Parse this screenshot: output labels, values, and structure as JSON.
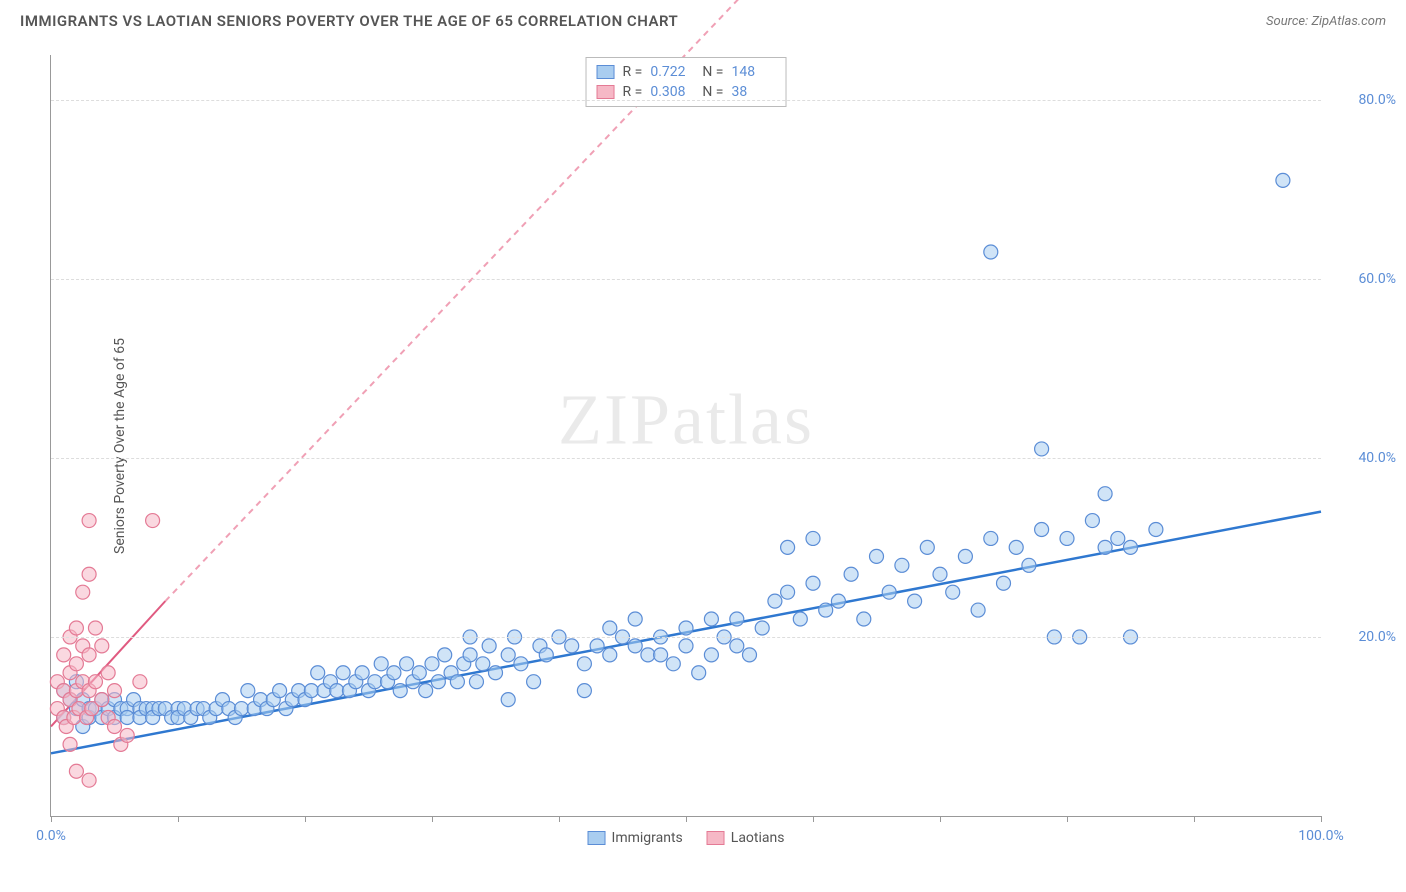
{
  "header": {
    "title": "IMMIGRANTS VS LAOTIAN SENIORS POVERTY OVER THE AGE OF 65 CORRELATION CHART",
    "source_prefix": "Source: ",
    "source": "ZipAtlas.com"
  },
  "watermark": "ZIPatlas",
  "chart": {
    "type": "scatter",
    "y_label": "Seniors Poverty Over the Age of 65",
    "xlim": [
      0,
      100
    ],
    "ylim": [
      0,
      85
    ],
    "x_ticks": [
      0,
      10,
      20,
      30,
      40,
      50,
      60,
      70,
      80,
      90,
      100
    ],
    "x_tick_labels": {
      "0": "0.0%",
      "100": "100.0%"
    },
    "y_grid": [
      20,
      40,
      60,
      80
    ],
    "y_tick_labels": {
      "20": "20.0%",
      "40": "40.0%",
      "60": "60.0%",
      "80": "80.0%"
    },
    "background_color": "#ffffff",
    "grid_color": "#dddddd",
    "axis_color": "#999999",
    "tick_label_color": "#5b8dd6",
    "marker_radius": 7,
    "marker_stroke_width": 1.2,
    "series": [
      {
        "name": "Immigrants",
        "fill": "#a9cdf0",
        "stroke": "#5b8dd6",
        "fill_opacity": 0.55,
        "trend": {
          "x1": 0,
          "y1": 7,
          "x2": 100,
          "y2": 34,
          "dash_extend": false,
          "solid_color": "#2f78d0",
          "width": 2.5
        },
        "r_value": "0.722",
        "n_value": "148",
        "points": [
          [
            1,
            14
          ],
          [
            1,
            11
          ],
          [
            1.5,
            13
          ],
          [
            2,
            12
          ],
          [
            2,
            15
          ],
          [
            2.5,
            13
          ],
          [
            2.5,
            10
          ],
          [
            3,
            12
          ],
          [
            3,
            11
          ],
          [
            3.5,
            12
          ],
          [
            4,
            11
          ],
          [
            4,
            13
          ],
          [
            4.5,
            12
          ],
          [
            5,
            11
          ],
          [
            5,
            13
          ],
          [
            5.5,
            12
          ],
          [
            6,
            12
          ],
          [
            6,
            11
          ],
          [
            6.5,
            13
          ],
          [
            7,
            12
          ],
          [
            7,
            11
          ],
          [
            7.5,
            12
          ],
          [
            8,
            12
          ],
          [
            8,
            11
          ],
          [
            8.5,
            12
          ],
          [
            9,
            12
          ],
          [
            9.5,
            11
          ],
          [
            10,
            12
          ],
          [
            10,
            11
          ],
          [
            10.5,
            12
          ],
          [
            11,
            11
          ],
          [
            11.5,
            12
          ],
          [
            12,
            12
          ],
          [
            12.5,
            11
          ],
          [
            13,
            12
          ],
          [
            13.5,
            13
          ],
          [
            14,
            12
          ],
          [
            14.5,
            11
          ],
          [
            15,
            12
          ],
          [
            15.5,
            14
          ],
          [
            16,
            12
          ],
          [
            16.5,
            13
          ],
          [
            17,
            12
          ],
          [
            17.5,
            13
          ],
          [
            18,
            14
          ],
          [
            18.5,
            12
          ],
          [
            19,
            13
          ],
          [
            19.5,
            14
          ],
          [
            20,
            13
          ],
          [
            20.5,
            14
          ],
          [
            21,
            16
          ],
          [
            21.5,
            14
          ],
          [
            22,
            15
          ],
          [
            22.5,
            14
          ],
          [
            23,
            16
          ],
          [
            23.5,
            14
          ],
          [
            24,
            15
          ],
          [
            24.5,
            16
          ],
          [
            25,
            14
          ],
          [
            25.5,
            15
          ],
          [
            26,
            17
          ],
          [
            26.5,
            15
          ],
          [
            27,
            16
          ],
          [
            27.5,
            14
          ],
          [
            28,
            17
          ],
          [
            28.5,
            15
          ],
          [
            29,
            16
          ],
          [
            29.5,
            14
          ],
          [
            30,
            17
          ],
          [
            30.5,
            15
          ],
          [
            31,
            18
          ],
          [
            31.5,
            16
          ],
          [
            32,
            15
          ],
          [
            32.5,
            17
          ],
          [
            33,
            18
          ],
          [
            33.5,
            15
          ],
          [
            34,
            17
          ],
          [
            34.5,
            19
          ],
          [
            35,
            16
          ],
          [
            36,
            18
          ],
          [
            36.5,
            20
          ],
          [
            37,
            17
          ],
          [
            38,
            15
          ],
          [
            38.5,
            19
          ],
          [
            39,
            18
          ],
          [
            40,
            20
          ],
          [
            41,
            19
          ],
          [
            42,
            17
          ],
          [
            42,
            14
          ],
          [
            43,
            19
          ],
          [
            44,
            18
          ],
          [
            45,
            20
          ],
          [
            46,
            19
          ],
          [
            47,
            18
          ],
          [
            48,
            20
          ],
          [
            49,
            17
          ],
          [
            50,
            19
          ],
          [
            51,
            16
          ],
          [
            52,
            18
          ],
          [
            53,
            20
          ],
          [
            54,
            22
          ],
          [
            55,
            18
          ],
          [
            56,
            21
          ],
          [
            57,
            24
          ],
          [
            58,
            25
          ],
          [
            58,
            30
          ],
          [
            59,
            22
          ],
          [
            60,
            26
          ],
          [
            60,
            31
          ],
          [
            61,
            23
          ],
          [
            62,
            24
          ],
          [
            63,
            27
          ],
          [
            64,
            22
          ],
          [
            65,
            29
          ],
          [
            66,
            25
          ],
          [
            67,
            28
          ],
          [
            68,
            24
          ],
          [
            69,
            30
          ],
          [
            70,
            27
          ],
          [
            71,
            25
          ],
          [
            72,
            29
          ],
          [
            73,
            23
          ],
          [
            74,
            31
          ],
          [
            75,
            26
          ],
          [
            76,
            30
          ],
          [
            77,
            28
          ],
          [
            78,
            32
          ],
          [
            79,
            20
          ],
          [
            80,
            31
          ],
          [
            81,
            20
          ],
          [
            82,
            33
          ],
          [
            83,
            30
          ],
          [
            83,
            36
          ],
          [
            84,
            31
          ],
          [
            85,
            30
          ],
          [
            85,
            20
          ],
          [
            87,
            32
          ],
          [
            78,
            41
          ],
          [
            74,
            63
          ],
          [
            97,
            71
          ],
          [
            44,
            21
          ],
          [
            46,
            22
          ],
          [
            48,
            18
          ],
          [
            50,
            21
          ],
          [
            52,
            22
          ],
          [
            54,
            19
          ],
          [
            33,
            20
          ],
          [
            36,
            13
          ]
        ]
      },
      {
        "name": "Laotians",
        "fill": "#f6b8c6",
        "stroke": "#e47a95",
        "fill_opacity": 0.55,
        "trend": {
          "x1": 0,
          "y1": 10,
          "x2": 9,
          "y2": 24,
          "dash_extend": true,
          "dash_x2": 60,
          "dash_y2": 100,
          "solid_color": "#e05a80",
          "dash_color": "#f0a0b5",
          "width": 2
        },
        "r_value": "0.308",
        "n_value": "38",
        "points": [
          [
            0.5,
            12
          ],
          [
            0.5,
            15
          ],
          [
            1,
            11
          ],
          [
            1,
            14
          ],
          [
            1,
            18
          ],
          [
            1.2,
            10
          ],
          [
            1.5,
            13
          ],
          [
            1.5,
            16
          ],
          [
            1.5,
            20
          ],
          [
            1.8,
            11
          ],
          [
            2,
            14
          ],
          [
            2,
            17
          ],
          [
            2,
            21
          ],
          [
            2.2,
            12
          ],
          [
            2.5,
            15
          ],
          [
            2.5,
            19
          ],
          [
            2.8,
            11
          ],
          [
            3,
            14
          ],
          [
            3,
            18
          ],
          [
            3,
            27
          ],
          [
            3.2,
            12
          ],
          [
            3.5,
            15
          ],
          [
            3,
            33
          ],
          [
            3.5,
            21
          ],
          [
            4,
            13
          ],
          [
            4,
            19
          ],
          [
            4.5,
            11
          ],
          [
            4.5,
            16
          ],
          [
            5,
            14
          ],
          [
            5,
            10
          ],
          [
            5.5,
            8
          ],
          [
            6,
            9
          ],
          [
            2,
            5
          ],
          [
            3,
            4
          ],
          [
            8,
            33
          ],
          [
            7,
            15
          ],
          [
            2.5,
            25
          ],
          [
            1.5,
            8
          ]
        ]
      }
    ],
    "bottom_legend": [
      {
        "label": "Immigrants",
        "fill": "#a9cdf0",
        "stroke": "#5b8dd6"
      },
      {
        "label": "Laotians",
        "fill": "#f6b8c6",
        "stroke": "#e47a95"
      }
    ],
    "corr_legend_labels": {
      "r": "R  =",
      "n": "N  ="
    }
  }
}
